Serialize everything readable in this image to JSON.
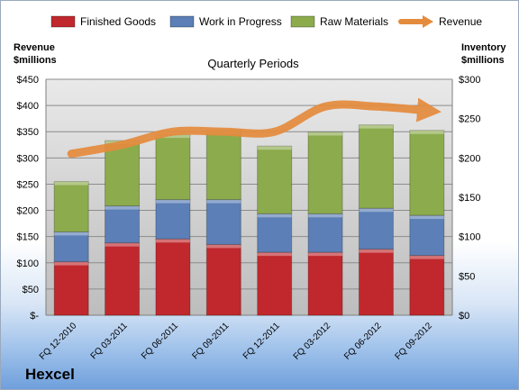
{
  "company": "Hexcel",
  "chart_data": {
    "type": "bar",
    "stacked": true,
    "title": "Quarterly Periods",
    "ylabel_left": "Revenue\n$millions",
    "ylabel_right": "Inventory\n$millions",
    "categories": [
      "FQ 12-2010",
      "FQ 03-2011",
      "FQ 06-2011",
      "FQ 09-2011",
      "FQ 12-2011",
      "FQ 03-2012",
      "FQ 06-2012",
      "FQ 09-2012"
    ],
    "left_axis": {
      "ylim": [
        0,
        450
      ],
      "ticks": [
        "$-",
        "$50",
        "$100",
        "$150",
        "$200",
        "$250",
        "$300",
        "$350",
        "$400",
        "$450"
      ]
    },
    "right_axis": {
      "ylim": [
        0,
        300
      ],
      "ticks": [
        "$0",
        "$50",
        "$100",
        "$150",
        "$200",
        "$250",
        "$300"
      ]
    },
    "series": [
      {
        "name": "Finished Goods",
        "axis": "right",
        "color": "#c0282d",
        "values": [
          68,
          92,
          97,
          90,
          80,
          80,
          84,
          76
        ]
      },
      {
        "name": "Work in Progress",
        "axis": "right",
        "color": "#5b7fb6",
        "values": [
          38,
          47,
          50,
          57,
          49,
          49,
          52,
          51
        ]
      },
      {
        "name": "Raw Materials",
        "axis": "right",
        "color": "#8cab4c",
        "values": [
          64,
          83,
          83,
          88,
          86,
          104,
          106,
          108
        ]
      },
      {
        "name": "Revenue",
        "axis": "left",
        "type": "line",
        "color": "#e58b3d",
        "values": [
          308,
          325,
          350,
          350,
          350,
          398,
          398,
          390
        ]
      }
    ],
    "grid": true,
    "legend": "top"
  }
}
